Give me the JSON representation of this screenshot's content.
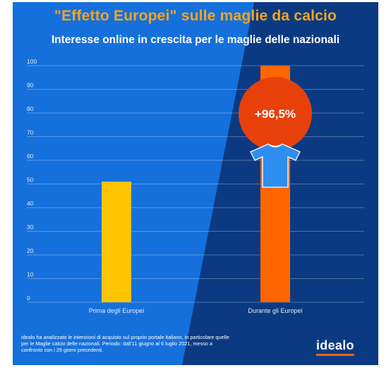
{
  "title": "\"Effetto Europei\" sulle maglie da calcio",
  "subtitle": "Interesse online in crescita per le maglie delle nazionali",
  "colors": {
    "background_light": "#1570dc",
    "background_dark": "#0b3a82",
    "title": "#f7a51c",
    "bar_before": "#ffc400",
    "bar_during": "#ff6600",
    "badge": "#e8400a",
    "shirt": "#2d8ef0",
    "logo_underline": "#ff6600"
  },
  "chart_data": {
    "type": "bar",
    "categories": [
      "Prima degli Europei",
      "Durante gli Europei"
    ],
    "values": [
      51,
      100
    ],
    "ylim": [
      0,
      100
    ],
    "yticks": [
      0,
      10,
      20,
      30,
      40,
      50,
      60,
      70,
      80,
      90,
      100
    ],
    "grid": true,
    "annotation": "+96,5%"
  },
  "footnote": "idealo ha analizzato le intenzioni di acquisto sul proprio portale italiano, in particolare quelle per le Maglie calcio delle nazionali. Periodo: dall'11 giugno al 6 luglio 2021, messo a confronto con i 26 giorni precedenti.",
  "logo": "idealo",
  "icons": {
    "badge_icon": "t-shirt-icon"
  }
}
